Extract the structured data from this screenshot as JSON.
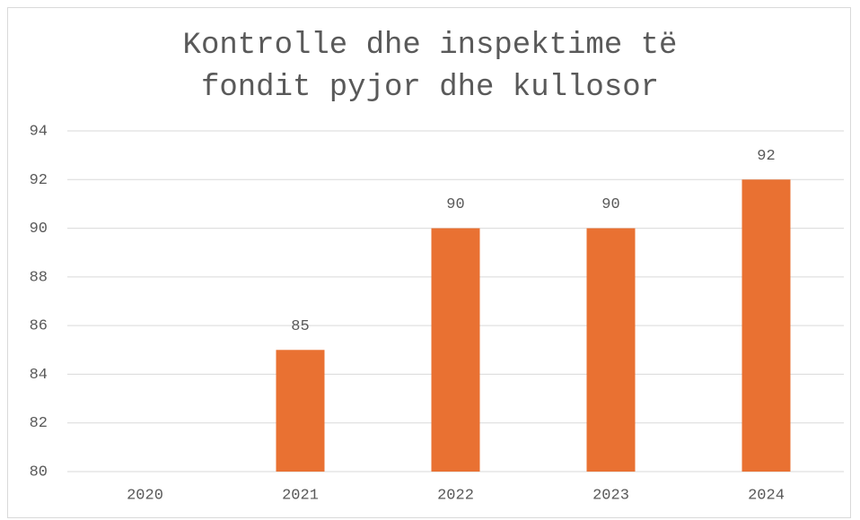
{
  "chart_data": {
    "type": "bar",
    "title": "Kontrolle dhe inspektime të fondit pyjor dhe kullosor",
    "categories": [
      "2020",
      "2021",
      "2022",
      "2023",
      "2024"
    ],
    "values": [
      null,
      85,
      90,
      90,
      92
    ],
    "color": "#e97132",
    "ylim": [
      80,
      94
    ],
    "yticks": [
      80,
      82,
      84,
      86,
      88,
      90,
      92,
      94
    ],
    "grid": true
  }
}
